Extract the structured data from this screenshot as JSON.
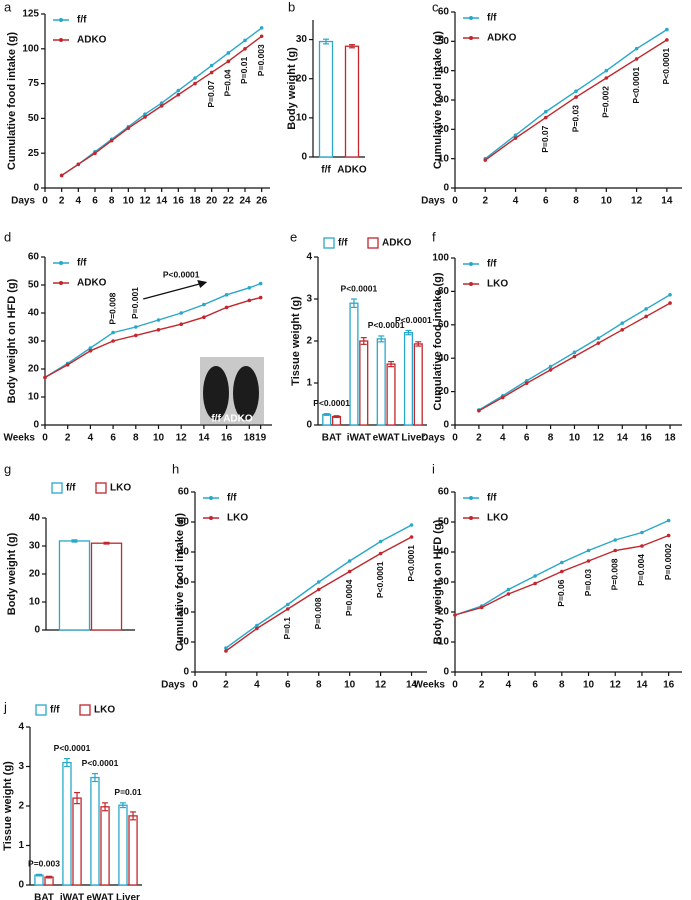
{
  "chart_data": [
    {
      "type": "line",
      "label": "a",
      "ylabel": "Cumulative food intake (g)",
      "xlabel": "Days",
      "x": [
        2,
        4,
        6,
        8,
        10,
        12,
        14,
        16,
        18,
        20,
        22,
        24,
        26
      ],
      "xlim": [
        0,
        27
      ],
      "xticks": [
        0,
        2,
        4,
        6,
        8,
        10,
        12,
        14,
        16,
        18,
        20,
        22,
        24,
        26
      ],
      "ylim": [
        0,
        125
      ],
      "yticks": [
        0,
        25,
        50,
        75,
        100,
        125
      ],
      "series": [
        {
          "name": "f/f",
          "color": "#29a8c9",
          "values": [
            9,
            17,
            26,
            35,
            44,
            53,
            61,
            70,
            79,
            88,
            97,
            106,
            115
          ]
        },
        {
          "name": "ADKO",
          "color": "#c1272d",
          "values": [
            9,
            17,
            25,
            34,
            43,
            51,
            59,
            67,
            75,
            83,
            91,
            100,
            109
          ]
        }
      ],
      "annotation_position": "below",
      "annotations": [
        {
          "x": 20,
          "text": "P=0.07"
        },
        {
          "x": 22,
          "text": "P=0.04"
        },
        {
          "x": 24,
          "text": "P=0.01"
        },
        {
          "x": 26,
          "text": "P=0.003"
        }
      ]
    },
    {
      "type": "bar",
      "label": "b",
      "ylabel": "Body weight (g)",
      "categories": [
        "f/f",
        "ADKO"
      ],
      "values": [
        29.5,
        28.3
      ],
      "errors": [
        0.6,
        0.4
      ],
      "colors": [
        "#29a8c9",
        "#c1272d"
      ],
      "ylim": [
        0,
        35
      ],
      "yticks": [
        0,
        10,
        20,
        30
      ]
    },
    {
      "type": "line",
      "label": "c",
      "ylabel": "Cumulative food intake (g)",
      "xlabel": "Days",
      "x": [
        2,
        4,
        6,
        8,
        10,
        12,
        14
      ],
      "xlim": [
        0,
        15
      ],
      "xticks": [
        0,
        2,
        4,
        6,
        8,
        10,
        12,
        14
      ],
      "ylim": [
        0,
        60
      ],
      "yticks": [
        0,
        10,
        20,
        30,
        40,
        50,
        60
      ],
      "series": [
        {
          "name": "f/f",
          "color": "#29a8c9",
          "values": [
            10,
            18,
            26,
            33,
            40,
            47.5,
            54
          ]
        },
        {
          "name": "ADKO",
          "color": "#c1272d",
          "values": [
            9.5,
            17,
            24,
            31,
            37.5,
            44,
            50.5
          ]
        }
      ],
      "annotation_position": "below",
      "annotations": [
        {
          "x": 6,
          "text": "P=0.07"
        },
        {
          "x": 8,
          "text": "P=0.03"
        },
        {
          "x": 10,
          "text": "P=0.002"
        },
        {
          "x": 12,
          "text": "P<0.0001"
        },
        {
          "x": 14,
          "text": "P<0.0001"
        }
      ]
    },
    {
      "type": "line",
      "label": "d",
      "ylabel": "Body weight on HFD (g)",
      "xlabel": "Weeks",
      "x": [
        0,
        2,
        4,
        6,
        8,
        10,
        12,
        14,
        16,
        18,
        19
      ],
      "xlim": [
        0,
        20
      ],
      "xticks": [
        0,
        2,
        4,
        6,
        8,
        10,
        12,
        14,
        16,
        18,
        19
      ],
      "ylim": [
        0,
        60
      ],
      "yticks": [
        0,
        10,
        20,
        30,
        40,
        50,
        60
      ],
      "series": [
        {
          "name": "f/f",
          "color": "#29a8c9",
          "values": [
            17,
            22,
            27.5,
            33,
            35,
            37.5,
            40,
            43,
            46.5,
            49,
            50.5
          ]
        },
        {
          "name": "ADKO",
          "color": "#c1272d",
          "values": [
            17,
            21.5,
            26.5,
            30,
            32,
            34,
            36,
            38.5,
            42,
            44.5,
            45.5
          ]
        }
      ],
      "annotation_position": "above",
      "annotations": [
        {
          "x": 6,
          "text": "P=0.008"
        },
        {
          "x": 8,
          "text": "P=0.001"
        },
        {
          "x": 12,
          "text": "P<0.0001",
          "arrow": true
        }
      ],
      "photo_label": "f/f ADKO"
    },
    {
      "type": "bar",
      "label": "e",
      "ylabel": "Tissue weight (g)",
      "legend": true,
      "categories": [
        "BAT",
        "iWAT",
        "eWAT",
        "Liver"
      ],
      "ylim": [
        0,
        4
      ],
      "yticks": [
        0,
        1,
        2,
        3,
        4
      ],
      "series": [
        {
          "name": "f/f",
          "color": "#29a8c9",
          "values": [
            0.25,
            2.9,
            2.05,
            2.2
          ],
          "errors": [
            0.02,
            0.1,
            0.07,
            0.05
          ]
        },
        {
          "name": "ADKO",
          "color": "#c1272d",
          "values": [
            0.2,
            2.0,
            1.45,
            1.93
          ],
          "errors": [
            0.02,
            0.08,
            0.06,
            0.05
          ]
        }
      ],
      "annotations": [
        "P<0.0001",
        "P<0.0001",
        "P<0.0001",
        "P<0.0001"
      ]
    },
    {
      "type": "line",
      "label": "f",
      "ylabel": "Cumulative food intake (g)",
      "xlabel": "Days",
      "x": [
        2,
        4,
        6,
        8,
        10,
        12,
        14,
        16,
        18
      ],
      "xlim": [
        0,
        19
      ],
      "xticks": [
        0,
        2,
        4,
        6,
        8,
        10,
        12,
        14,
        16,
        18
      ],
      "ylim": [
        0,
        100
      ],
      "yticks": [
        0,
        20,
        40,
        60,
        80,
        100
      ],
      "series": [
        {
          "name": "f/f",
          "color": "#29a8c9",
          "values": [
            9,
            17.5,
            26.5,
            35,
            43.5,
            52,
            61,
            69.5,
            78
          ]
        },
        {
          "name": "LKO",
          "color": "#c1272d",
          "values": [
            8.5,
            16.5,
            25,
            33,
            41,
            49,
            57,
            65,
            73
          ]
        }
      ]
    },
    {
      "type": "bar",
      "label": "g",
      "ylabel": "Body weight (g)",
      "legend": true,
      "categories": [
        null
      ],
      "ylim": [
        0,
        40
      ],
      "yticks": [
        0,
        10,
        20,
        30,
        40
      ],
      "series": [
        {
          "name": "f/f",
          "color": "#29a8c9",
          "values": [
            31.8
          ],
          "errors": [
            0.4
          ]
        },
        {
          "name": "LKO",
          "color": "#c1272d",
          "values": [
            31.0
          ],
          "errors": [
            0.3
          ]
        }
      ]
    },
    {
      "type": "line",
      "label": "h",
      "ylabel": "Cumulative food intake (g)",
      "xlabel": "Days",
      "x": [
        2,
        4,
        6,
        8,
        10,
        12,
        14
      ],
      "xlim": [
        0,
        15
      ],
      "xticks": [
        0,
        2,
        4,
        6,
        8,
        10,
        12,
        14
      ],
      "ylim": [
        0,
        60
      ],
      "yticks": [
        0,
        10,
        20,
        30,
        40,
        50,
        60
      ],
      "series": [
        {
          "name": "f/f",
          "color": "#29a8c9",
          "values": [
            8,
            15.5,
            22.5,
            30,
            37,
            43.5,
            49
          ]
        },
        {
          "name": "LKO",
          "color": "#c1272d",
          "values": [
            7,
            14.5,
            21,
            27.5,
            33.5,
            39.5,
            45
          ]
        }
      ],
      "annotation_position": "below",
      "annotations": [
        {
          "x": 6,
          "text": "P=0.1"
        },
        {
          "x": 8,
          "text": "P=0.008"
        },
        {
          "x": 10,
          "text": "P=0.0004"
        },
        {
          "x": 12,
          "text": "P<0.0001"
        },
        {
          "x": 14,
          "text": "P<0.0001"
        }
      ]
    },
    {
      "type": "line",
      "label": "i",
      "ylabel": "Body weight on HFD (g)",
      "xlabel": "Weeks",
      "x": [
        0,
        2,
        4,
        6,
        8,
        10,
        12,
        14,
        16
      ],
      "xlim": [
        0,
        17
      ],
      "xticks": [
        0,
        2,
        4,
        6,
        8,
        10,
        12,
        14,
        16
      ],
      "ylim": [
        0,
        60
      ],
      "yticks": [
        0,
        10,
        20,
        30,
        40,
        50,
        60
      ],
      "series": [
        {
          "name": "f/f",
          "color": "#29a8c9",
          "values": [
            19,
            22,
            27.5,
            32,
            36.5,
            40.5,
            44,
            46.5,
            50.5
          ]
        },
        {
          "name": "LKO",
          "color": "#c1272d",
          "values": [
            19,
            21.5,
            26,
            29.5,
            33.5,
            37,
            40.5,
            42,
            45.5
          ]
        }
      ],
      "annotation_position": "below",
      "annotations": [
        {
          "x": 8,
          "text": "P=0.06"
        },
        {
          "x": 10,
          "text": "P=0.03"
        },
        {
          "x": 12,
          "text": "P=0.008"
        },
        {
          "x": 14,
          "text": "P=0.004"
        },
        {
          "x": 16,
          "text": "P=0.0002"
        }
      ]
    },
    {
      "type": "bar",
      "label": "j",
      "ylabel": "Tissue weight (g)",
      "legend": true,
      "categories": [
        "BAT",
        "iWAT",
        "eWAT",
        "Liver"
      ],
      "ylim": [
        0,
        4
      ],
      "yticks": [
        0,
        1,
        2,
        3,
        4
      ],
      "series": [
        {
          "name": "f/f",
          "color": "#29a8c9",
          "values": [
            0.25,
            3.1,
            2.72,
            2.02
          ],
          "errors": [
            0.02,
            0.1,
            0.1,
            0.06
          ]
        },
        {
          "name": "LKO",
          "color": "#c1272d",
          "values": [
            0.2,
            2.2,
            1.98,
            1.75
          ],
          "errors": [
            0.02,
            0.14,
            0.1,
            0.1
          ]
        }
      ],
      "annotations": [
        "P=0.003",
        "P<0.0001",
        "P<0.0001",
        "P=0.01"
      ]
    }
  ]
}
